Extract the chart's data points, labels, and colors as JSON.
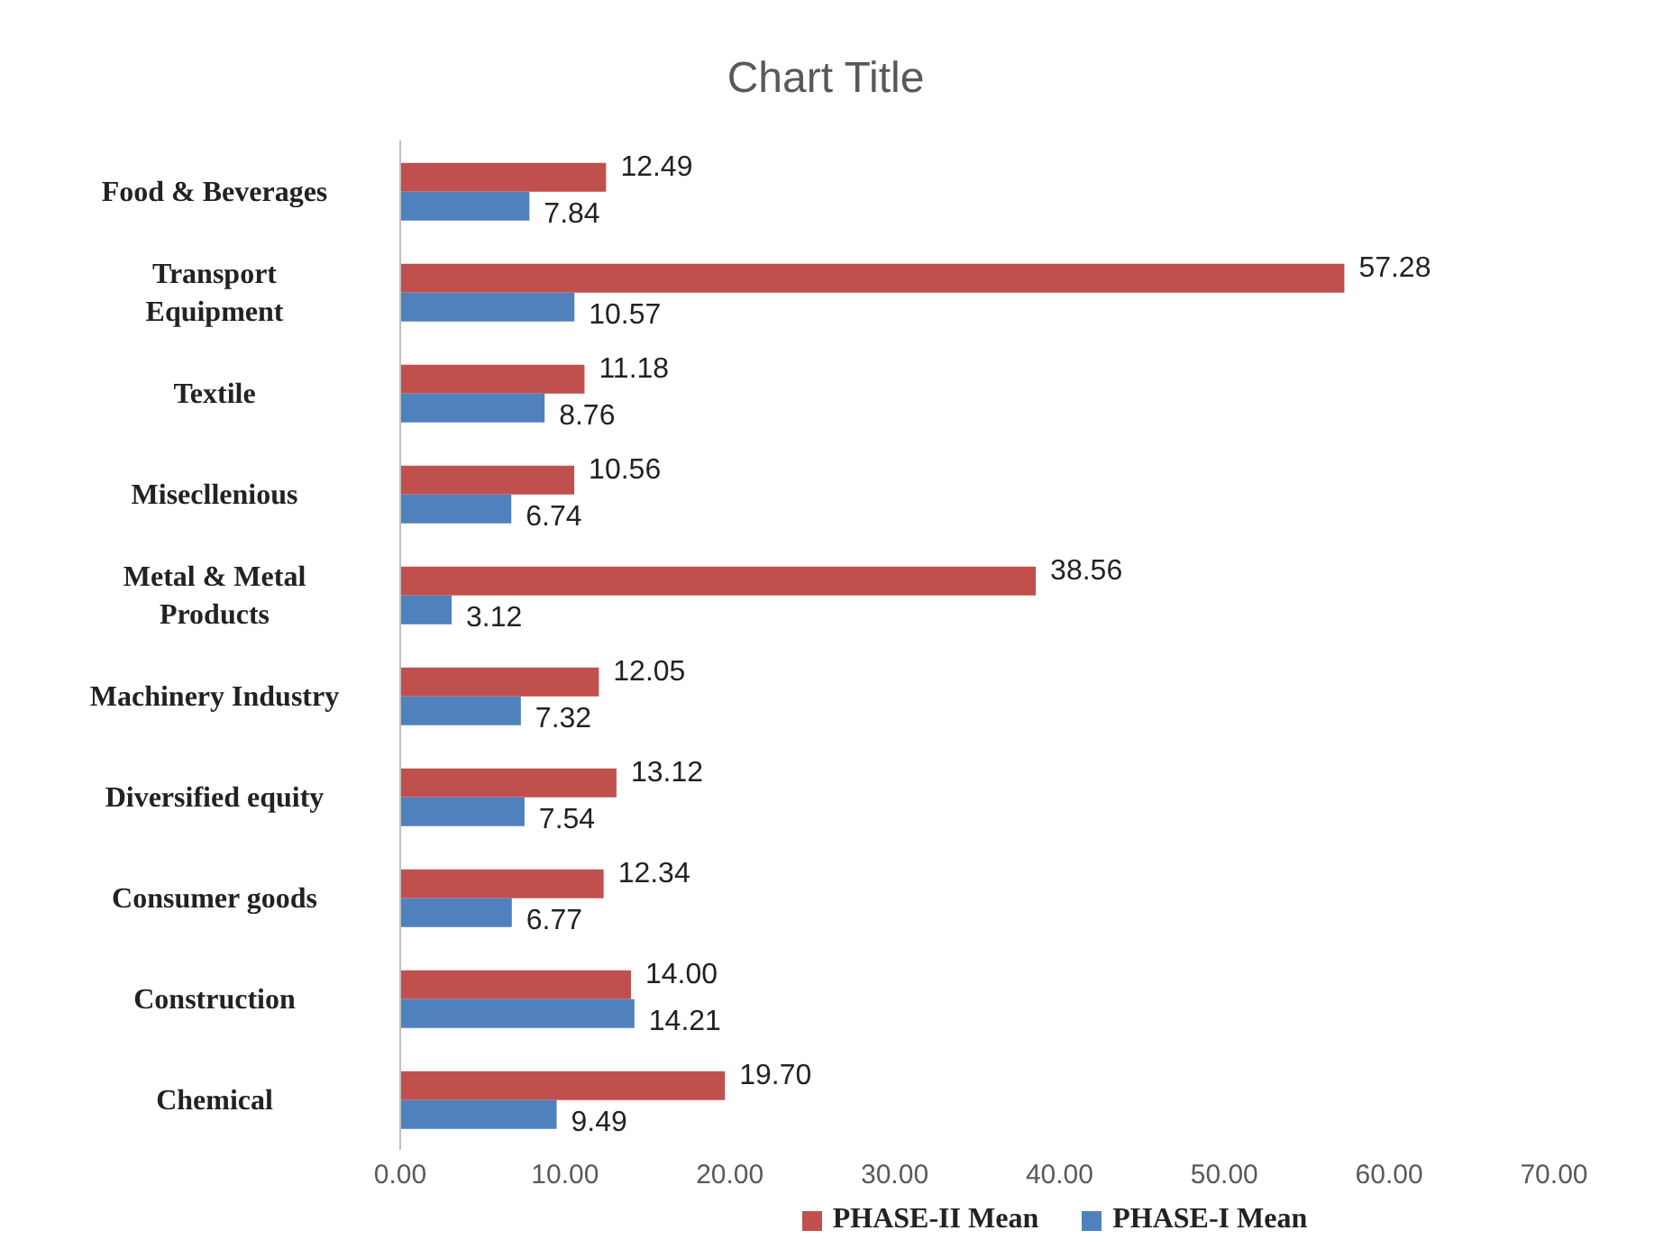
{
  "chart_data": {
    "type": "bar",
    "orientation": "horizontal",
    "title": "Chart Title",
    "categories": [
      "Food & Beverages",
      "Transport Equipment",
      "Textile",
      "Misecllenious",
      "Metal & Metal Products",
      "Machinery Industry",
      "Diversified equity",
      "Consumer goods",
      "Construction",
      "Chemical"
    ],
    "series": [
      {
        "name": "PHASE-II Mean",
        "color": "#c0504d",
        "values": [
          12.49,
          57.28,
          11.18,
          10.56,
          38.56,
          12.05,
          13.12,
          12.34,
          14.0,
          19.7
        ],
        "value_labels": [
          "12.49",
          "57.28",
          "11.18",
          "10.56",
          "38.56",
          "12.05",
          "13.12",
          "12.34",
          "14.00",
          "19.70"
        ]
      },
      {
        "name": "PHASE-I Mean",
        "color": "#4f81bd",
        "values": [
          7.84,
          10.57,
          8.76,
          6.74,
          3.12,
          7.32,
          7.54,
          6.77,
          14.21,
          9.49
        ],
        "value_labels": [
          "7.84",
          "10.57",
          "8.76",
          "6.74",
          "3.12",
          "7.32",
          "7.54",
          "6.77",
          "14.21",
          "9.49"
        ]
      }
    ],
    "xlim": [
      0,
      70
    ],
    "xticks": [
      {
        "value": 0,
        "label": "0.00"
      },
      {
        "value": 10,
        "label": "10.00"
      },
      {
        "value": 20,
        "label": "20.00"
      },
      {
        "value": 30,
        "label": "30.00"
      },
      {
        "value": 40,
        "label": "40.00"
      },
      {
        "value": 50,
        "label": "50.00"
      },
      {
        "value": 60,
        "label": "60.00"
      },
      {
        "value": 70,
        "label": "70.00"
      }
    ],
    "grid": false,
    "legend": "bottom"
  }
}
